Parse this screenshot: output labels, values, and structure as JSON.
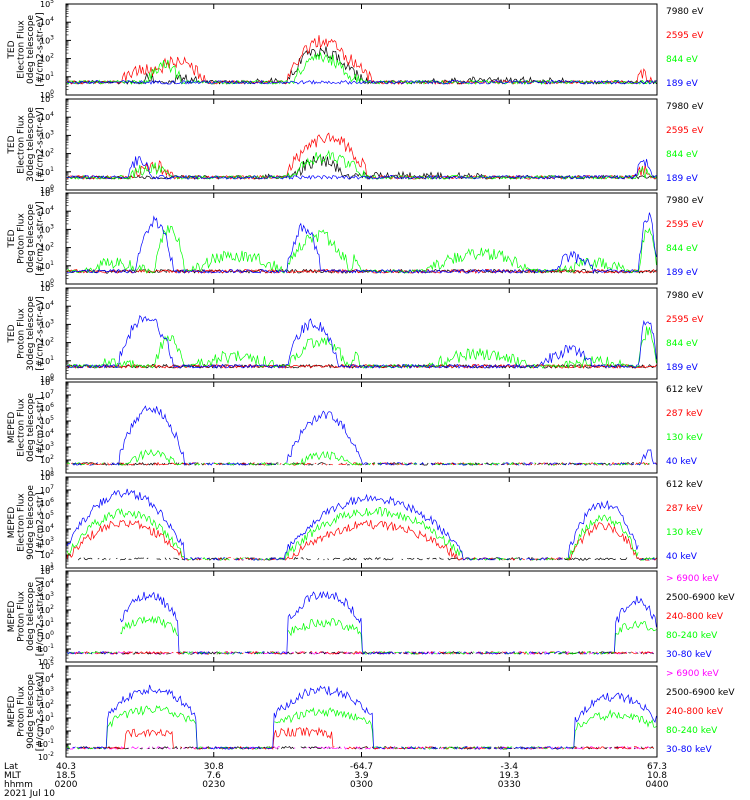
{
  "colors": {
    "black": "#000000",
    "red": "#ff0000",
    "green": "#00ff00",
    "blue": "#0000ff",
    "magenta": "#ff00ff"
  },
  "panels": [
    {
      "ylabel": [
        "TED",
        "Electron Flux",
        "0deg telescope",
        "[#/cm2-s-str-eV]"
      ],
      "ytick_exps": [
        0,
        1,
        2,
        3,
        4,
        5
      ],
      "ylog_range": [
        0,
        5
      ],
      "legend": [
        {
          "label": "7980 eV",
          "color": "#000000"
        },
        {
          "label": "2595 eV",
          "color": "#ff0000"
        },
        {
          "label": "844 eV",
          "color": "#00ff00"
        },
        {
          "label": "189 eV",
          "color": "#0000ff"
        }
      ]
    },
    {
      "ylabel": [
        "TED",
        "Electron Flux",
        "30deg telescope",
        "[#/cm2-s-str-eV]"
      ],
      "ytick_exps": [
        0,
        1,
        2,
        3,
        4,
        5
      ],
      "ylog_range": [
        0,
        5
      ],
      "legend": [
        {
          "label": "7980 eV",
          "color": "#000000"
        },
        {
          "label": "2595 eV",
          "color": "#ff0000"
        },
        {
          "label": "844 eV",
          "color": "#00ff00"
        },
        {
          "label": "189 eV",
          "color": "#0000ff"
        }
      ]
    },
    {
      "ylabel": [
        "TED",
        "Proton Flux",
        "0deg telescope",
        "[#/cm2-s-str-eV]"
      ],
      "ytick_exps": [
        0,
        1,
        2,
        3,
        4,
        5
      ],
      "ylog_range": [
        0,
        5
      ],
      "legend": [
        {
          "label": "7980 eV",
          "color": "#000000"
        },
        {
          "label": "2595 eV",
          "color": "#ff0000"
        },
        {
          "label": "844 eV",
          "color": "#00ff00"
        },
        {
          "label": "189 eV",
          "color": "#0000ff"
        }
      ]
    },
    {
      "ylabel": [
        "TED",
        "Proton Flux",
        "30deg telescope",
        "[#/cm2-s-str-eV]"
      ],
      "ytick_exps": [
        0,
        1,
        2,
        3,
        4,
        5
      ],
      "ylog_range": [
        0,
        5
      ],
      "legend": [
        {
          "label": "7980 eV",
          "color": "#000000"
        },
        {
          "label": "2595 eV",
          "color": "#ff0000"
        },
        {
          "label": "844 eV",
          "color": "#00ff00"
        },
        {
          "label": "189 eV",
          "color": "#0000ff"
        }
      ]
    },
    {
      "ylabel": [
        "MEPED",
        "Electron Flux",
        "0deg telescope",
        "[#/cm2-s-str]"
      ],
      "ytick_exps": [
        1,
        2,
        3,
        4,
        5,
        6,
        7,
        8
      ],
      "ylog_range": [
        1,
        8
      ],
      "legend": [
        {
          "label": "612 keV",
          "color": "#000000"
        },
        {
          "label": "287 keV",
          "color": "#ff0000"
        },
        {
          "label": "130 keV",
          "color": "#00ff00"
        },
        {
          "label": "40 keV",
          "color": "#0000ff"
        }
      ]
    },
    {
      "ylabel": [
        "MEPED",
        "Electron Flux",
        "90deg telescope",
        "[#/cm2-s-str]"
      ],
      "ytick_exps": [
        1,
        2,
        3,
        4,
        5,
        6,
        7,
        8
      ],
      "ylog_range": [
        1,
        8
      ],
      "legend": [
        {
          "label": "612 keV",
          "color": "#000000"
        },
        {
          "label": "287 keV",
          "color": "#ff0000"
        },
        {
          "label": "130 keV",
          "color": "#00ff00"
        },
        {
          "label": "40 keV",
          "color": "#0000ff"
        }
      ]
    },
    {
      "ylabel": [
        "MEPED",
        "Proton Flux",
        "0deg telescope",
        "[#/cm2-s-str-keV]"
      ],
      "ytick_exps": [
        -2,
        -1,
        0,
        1,
        2,
        3,
        4,
        5
      ],
      "ylog_range": [
        -2,
        5
      ],
      "legend": [
        {
          "label": "> 6900 keV",
          "color": "#ff00ff"
        },
        {
          "label": "2500-6900 keV",
          "color": "#000000"
        },
        {
          "label": "240-800 keV",
          "color": "#ff0000"
        },
        {
          "label": "80-240 keV",
          "color": "#00ff00"
        },
        {
          "label": "30-80 keV",
          "color": "#0000ff"
        }
      ]
    },
    {
      "ylabel": [
        "MEPED",
        "Proton Flux",
        "90deg telescope",
        "[#/cm2-s-str-keV]"
      ],
      "ytick_exps": [
        -2,
        -1,
        0,
        1,
        2,
        3,
        4,
        5
      ],
      "ylog_range": [
        -2,
        5
      ],
      "legend": [
        {
          "label": "> 6900 keV",
          "color": "#ff00ff"
        },
        {
          "label": "2500-6900 keV",
          "color": "#000000"
        },
        {
          "label": "240-800 keV",
          "color": "#ff0000"
        },
        {
          "label": "80-240 keV",
          "color": "#00ff00"
        },
        {
          "label": "30-80 keV",
          "color": "#0000ff"
        }
      ]
    }
  ],
  "xaxis": {
    "row_labels": [
      "Lat",
      "MLT",
      "hhmm"
    ],
    "ticks": [
      {
        "lat": "40.3",
        "mlt": "18.5",
        "hhmm": "0200"
      },
      {
        "lat": "30.8",
        "mlt": "7.6",
        "hhmm": "0230"
      },
      {
        "lat": "-64.7",
        "mlt": "3.9",
        "hhmm": "0300"
      },
      {
        "lat": "-3.4",
        "mlt": "19.3",
        "hhmm": "0330"
      },
      {
        "lat": "67.3",
        "mlt": "10.8",
        "hhmm": "0400"
      }
    ],
    "date": "2021 Jul 10"
  },
  "chart_data": {
    "type": "line",
    "x_range": [
      "0200",
      "0400"
    ],
    "activity": [
      {
        "panel": 0,
        "series": "7980 eV",
        "envelope": [
          [
            0.08,
            0.04,
            1.0
          ],
          [
            0.13,
            0.15,
            1.5
          ],
          [
            0.16,
            0.24,
            1.2
          ],
          [
            0.2,
            0.6,
            1.0
          ],
          [
            0.375,
            0.49,
            2.8
          ],
          [
            0.42,
            0.52,
            1.6
          ],
          [
            0.5,
            0.9,
            1.0
          ],
          [
            0.565,
            0.98,
            1.0
          ]
        ]
      },
      {
        "panel": 0,
        "series": "2595 eV",
        "envelope": [
          [
            0.08,
            0.19,
            1.7
          ],
          [
            0.135,
            0.24,
            2.2
          ],
          [
            0.375,
            0.49,
            3.3
          ],
          [
            0.42,
            0.52,
            2.4
          ],
          [
            0.96,
            0.995,
            1.5
          ]
        ]
      },
      {
        "panel": 0,
        "series": "844 eV",
        "envelope": [
          [
            0.135,
            0.2,
            2.0
          ],
          [
            0.38,
            0.49,
            2.4
          ],
          [
            0.44,
            0.51,
            1.4
          ]
        ]
      },
      {
        "panel": 1,
        "series": "7980 eV",
        "envelope": [
          [
            0.08,
            0.99,
            1.0
          ],
          [
            0.38,
            0.48,
            2.0
          ]
        ]
      },
      {
        "panel": 1,
        "series": "2595 eV",
        "envelope": [
          [
            0.1,
            0.19,
            1.7
          ],
          [
            0.375,
            0.51,
            3.2
          ],
          [
            0.96,
            0.995,
            1.5
          ]
        ]
      },
      {
        "panel": 1,
        "series": "844 eV",
        "envelope": [
          [
            0.1,
            0.19,
            1.6
          ],
          [
            0.375,
            0.51,
            2.2
          ],
          [
            0.96,
            0.995,
            1.3
          ]
        ]
      },
      {
        "panel": 1,
        "series": "189 eV",
        "envelope": [
          [
            0.1,
            0.15,
            2.0
          ],
          [
            0.96,
            0.995,
            1.8
          ]
        ]
      },
      {
        "panel": 2,
        "series": "844 eV",
        "envelope": [
          [
            0.02,
            0.15,
            1.5
          ],
          [
            0.15,
            0.2,
            3.4
          ],
          [
            0.2,
            0.375,
            1.9
          ],
          [
            0.375,
            0.48,
            3.0
          ],
          [
            0.48,
            0.5,
            1.8
          ],
          [
            0.6,
            0.8,
            2.0
          ],
          [
            0.82,
            0.97,
            1.5
          ],
          [
            0.97,
            1.0,
            3.4
          ]
        ]
      },
      {
        "panel": 2,
        "series": "189 eV",
        "envelope": [
          [
            0.12,
            0.18,
            3.8
          ],
          [
            0.375,
            0.43,
            3.4
          ],
          [
            0.82,
            0.9,
            1.8
          ],
          [
            0.97,
            1.0,
            4.0
          ]
        ]
      },
      {
        "panel": 3,
        "series": "844 eV",
        "envelope": [
          [
            0.02,
            0.15,
            1.2
          ],
          [
            0.15,
            0.2,
            2.6
          ],
          [
            0.2,
            0.375,
            1.6
          ],
          [
            0.375,
            0.48,
            2.4
          ],
          [
            0.48,
            0.5,
            1.5
          ],
          [
            0.6,
            0.8,
            1.7
          ],
          [
            0.82,
            0.97,
            1.3
          ],
          [
            0.97,
            1.0,
            3.0
          ]
        ]
      },
      {
        "panel": 3,
        "series": "189 eV",
        "envelope": [
          [
            0.09,
            0.18,
            3.6
          ],
          [
            0.375,
            0.46,
            3.4
          ],
          [
            0.8,
            0.9,
            1.9
          ],
          [
            0.97,
            1.0,
            3.7
          ]
        ]
      },
      {
        "panel": 4,
        "series": "40 keV",
        "envelope": [
          [
            0.09,
            0.2,
            6.3
          ],
          [
            0.375,
            0.5,
            5.8
          ],
          [
            0.97,
            1.0,
            3.0
          ]
        ]
      },
      {
        "panel": 4,
        "series": "130 keV",
        "envelope": [
          [
            0.09,
            0.2,
            2.9
          ],
          [
            0.375,
            0.5,
            2.7
          ]
        ]
      },
      {
        "panel": 5,
        "series": "40 keV",
        "envelope": [
          [
            0.0,
            0.2,
            7.1
          ],
          [
            0.37,
            0.67,
            6.7
          ],
          [
            0.85,
            0.97,
            6.3
          ]
        ]
      },
      {
        "panel": 5,
        "series": "130 keV",
        "envelope": [
          [
            0.0,
            0.2,
            5.6
          ],
          [
            0.37,
            0.67,
            5.7
          ],
          [
            0.85,
            0.97,
            5.2
          ]
        ]
      },
      {
        "panel": 5,
        "series": "287 keV",
        "envelope": [
          [
            0.0,
            0.2,
            4.8
          ],
          [
            0.37,
            0.67,
            4.7
          ],
          [
            0.85,
            0.97,
            4.6
          ]
        ]
      },
      {
        "panel": 6,
        "series": "30-80 keV",
        "envelope": [
          [
            0.09,
            0.19,
            3.5
          ],
          [
            0.375,
            0.5,
            3.6
          ],
          [
            0.93,
            1.0,
            3.1
          ]
        ]
      },
      {
        "panel": 6,
        "series": "80-240 keV",
        "envelope": [
          [
            0.09,
            0.19,
            1.6
          ],
          [
            0.375,
            0.5,
            1.4
          ],
          [
            0.93,
            1.0,
            1.3
          ]
        ]
      },
      {
        "panel": 7,
        "series": "30-80 keV",
        "envelope": [
          [
            0.07,
            0.22,
            3.6
          ],
          [
            0.35,
            0.52,
            3.5
          ],
          [
            0.86,
            1.0,
            3.0
          ]
        ]
      },
      {
        "panel": 7,
        "series": "80-240 keV",
        "envelope": [
          [
            0.07,
            0.22,
            2.0
          ],
          [
            0.35,
            0.52,
            1.8
          ],
          [
            0.86,
            1.0,
            1.6
          ]
        ]
      },
      {
        "panel": 7,
        "series": "240-800 keV",
        "envelope": [
          [
            0.1,
            0.18,
            0.2
          ],
          [
            0.35,
            0.45,
            0.3
          ]
        ]
      }
    ]
  }
}
